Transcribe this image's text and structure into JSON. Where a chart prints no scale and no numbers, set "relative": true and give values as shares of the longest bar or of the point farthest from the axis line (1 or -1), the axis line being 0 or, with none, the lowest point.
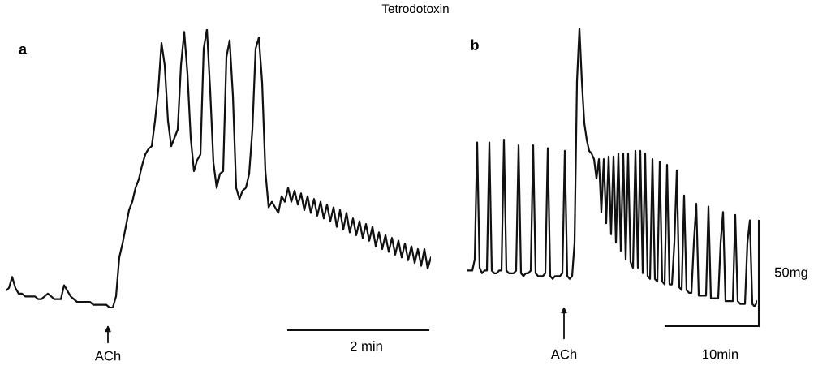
{
  "chart_data": [
    {
      "type": "line",
      "title": "Tetrodotoxin",
      "relative": true,
      "annotations": [
        "a",
        "ACh",
        "2 min"
      ],
      "categories": [
        null,
        null,
        null,
        null,
        null,
        null,
        null,
        null,
        null,
        null,
        null,
        null,
        null,
        null,
        null,
        null,
        null,
        null,
        null,
        null,
        null,
        null,
        null,
        null,
        null,
        null,
        null,
        null,
        null,
        null,
        null,
        null,
        null,
        null,
        null,
        null,
        null,
        null,
        null,
        null,
        null,
        null,
        null,
        null,
        null,
        null,
        null,
        null,
        null,
        null,
        null,
        null,
        null,
        null,
        null,
        null,
        null,
        null,
        null,
        null,
        null,
        null,
        null,
        null,
        null,
        null,
        null,
        null,
        null,
        null,
        null,
        null,
        null,
        null,
        null,
        null,
        null,
        null,
        null,
        null,
        null,
        null,
        null,
        null,
        null,
        null,
        null,
        null,
        null,
        null,
        null,
        null,
        null,
        null,
        null,
        null,
        null,
        null,
        null,
        null,
        null,
        null,
        null,
        null,
        null,
        null,
        null,
        null,
        null,
        null,
        null,
        null,
        null,
        null,
        null,
        null,
        null,
        null,
        null,
        null,
        null,
        null,
        null,
        null,
        null,
        null,
        null,
        null,
        null,
        null,
        null,
        null
      ],
      "series": [
        {
          "color": "#111111",
          "values": [
            0.06,
            0.07,
            0.11,
            0.07,
            0.05,
            0.05,
            0.04,
            0.04,
            0.04,
            0.04,
            0.03,
            0.03,
            0.04,
            0.05,
            0.04,
            0.03,
            0.03,
            0.03,
            0.08,
            0.06,
            0.04,
            0.03,
            0.02,
            0.02,
            0.02,
            0.02,
            0.02,
            0.01,
            0.01,
            0.01,
            0.01,
            0.01,
            0,
            0,
            0.04,
            0.18,
            0.23,
            0.29,
            0.35,
            0.38,
            0.43,
            0.46,
            0.51,
            0.55,
            0.57,
            0.58,
            0.67,
            0.78,
            0.95,
            0.87,
            0.67,
            0.58,
            0.61,
            0.64,
            0.87,
            0.99,
            0.84,
            0.61,
            0.49,
            0.53,
            0.55,
            0.93,
            1.0,
            0.78,
            0.52,
            0.43,
            0.48,
            0.49,
            0.9,
            0.96,
            0.76,
            0.43,
            0.39,
            0.42,
            0.43,
            0.48,
            0.64,
            0.93,
            0.97,
            0.81,
            0.49,
            0.36,
            0.38,
            0.36,
            0.34,
            0.4,
            0.38,
            0.43,
            0.38,
            0.42,
            0.37,
            0.41,
            0.35,
            0.4,
            0.34,
            0.39,
            0.33,
            0.38,
            0.32,
            0.37,
            0.31,
            0.36,
            0.29,
            0.35,
            0.28,
            0.34,
            0.27,
            0.32,
            0.26,
            0.31,
            0.25,
            0.3,
            0.24,
            0.29,
            0.22,
            0.27,
            0.21,
            0.26,
            0.2,
            0.25,
            0.19,
            0.24,
            0.18,
            0.23,
            0.17,
            0.22,
            0.16,
            0.21,
            0.15,
            0.21,
            0.14,
            0.18
          ]
        }
      ]
    },
    {
      "type": "line",
      "relative": true,
      "annotations": [
        "b",
        "ACh",
        "10min",
        "50mg"
      ],
      "categories": [
        null,
        null,
        null,
        null,
        null,
        null,
        null,
        null,
        null,
        null,
        null,
        null,
        null,
        null,
        null,
        null,
        null,
        null,
        null,
        null,
        null,
        null,
        null,
        null,
        null,
        null,
        null,
        null,
        null,
        null,
        null,
        null,
        null,
        null,
        null,
        null,
        null,
        null,
        null,
        null,
        null,
        null,
        null,
        null,
        null,
        null,
        null,
        null,
        null,
        null,
        null,
        null,
        null,
        null,
        null,
        null,
        null,
        null,
        null,
        null,
        null,
        null,
        null,
        null,
        null,
        null,
        null,
        null,
        null,
        null,
        null,
        null,
        null,
        null,
        null,
        null,
        null,
        null,
        null,
        null,
        null,
        null,
        null,
        null,
        null,
        null,
        null,
        null,
        null,
        null,
        null,
        null,
        null,
        null,
        null,
        null,
        null,
        null,
        null,
        null,
        null,
        null,
        null,
        null,
        null,
        null,
        null,
        null,
        null,
        null,
        null,
        null,
        null,
        null,
        null,
        null,
        null,
        null,
        null,
        null
      ],
      "series": [
        {
          "color": "#111111",
          "values": [
            0.13,
            0.13,
            0.13,
            0.17,
            0.59,
            0.14,
            0.12,
            0.13,
            0.13,
            0.59,
            0.13,
            0.12,
            0.12,
            0.13,
            0.13,
            0.6,
            0.13,
            0.12,
            0.12,
            0.12,
            0.13,
            0.58,
            0.12,
            0.11,
            0.12,
            0.12,
            0.13,
            0.58,
            0.12,
            0.11,
            0.11,
            0.11,
            0.12,
            0.57,
            0.11,
            0.1,
            0.11,
            0.11,
            0.11,
            0.12,
            0.56,
            0.11,
            0.1,
            0.11,
            0.23,
            0.81,
            1.0,
            0.81,
            0.66,
            0.6,
            0.56,
            0.55,
            0.53,
            0.46,
            0.53,
            0.34,
            0.53,
            0.3,
            0.54,
            0.26,
            0.54,
            0.23,
            0.55,
            0.2,
            0.55,
            0.17,
            0.55,
            0.16,
            0.14,
            0.56,
            0.14,
            0.56,
            0.12,
            0.55,
            0.11,
            0.1,
            0.53,
            0.1,
            0.09,
            0.52,
            0.09,
            0.08,
            0.51,
            0.08,
            0.08,
            0.23,
            0.49,
            0.07,
            0.06,
            0.4,
            0.06,
            0.05,
            0.05,
            0.23,
            0.37,
            0.04,
            0.04,
            0.04,
            0.04,
            0.36,
            0.03,
            0.03,
            0.03,
            0.03,
            0.23,
            0.34,
            0.02,
            0.02,
            0.02,
            0.02,
            0.33,
            0.02,
            0.01,
            0.01,
            0.01,
            0.23,
            0.31,
            0.01,
            0,
            0.02
          ]
        }
      ]
    }
  ]
}
